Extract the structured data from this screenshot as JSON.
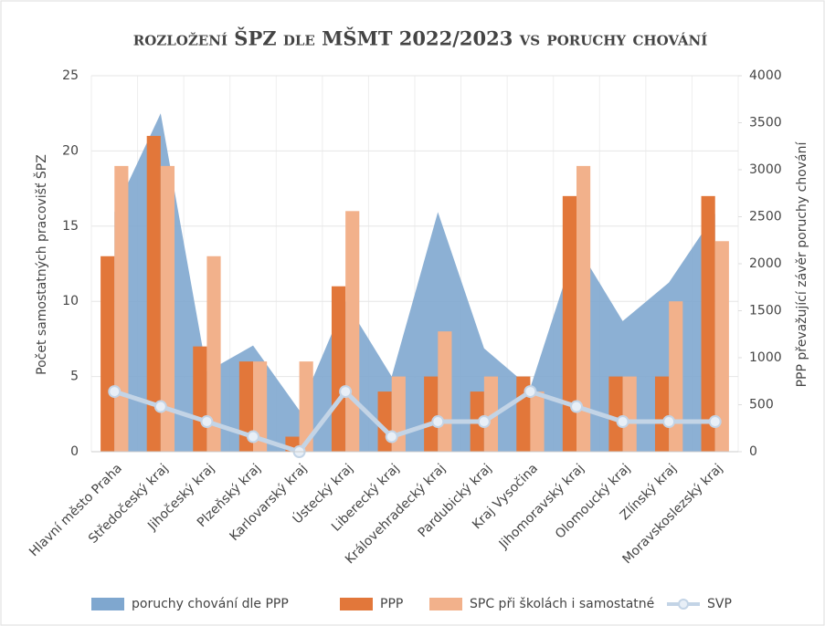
{
  "chart_data": {
    "type": "combo",
    "title": "rozložení ŠPZ dle MŠMT 2022/2023 vs poruchy chování",
    "ylabel": "Počet samostatných pracovišť ŠPZ",
    "y2label": "PPP převažující závěr poruchy chování",
    "categories": [
      "Hlavní město Praha",
      "Středočeský kraj",
      "Jihočeský kraj",
      "Plzeňský kraj",
      "Karlovarský kraj",
      "Ústecký kraj",
      "Liberecký kraj",
      "Královehradecký kraj",
      "Pardubický kraj",
      "Kraj Vysočina",
      "Jihomoravský kraj",
      "Olomoucký kraj",
      "Zlínský kraj",
      "Moravskoslezský kraj"
    ],
    "series": [
      {
        "name": "poruchy chování dle PPP",
        "type": "area",
        "axis": "y2",
        "color": "#7fa7cf",
        "values": [
          2550,
          3600,
          850,
          1130,
          440,
          1600,
          800,
          2550,
          1100,
          680,
          2200,
          1390,
          1800,
          2530
        ]
      },
      {
        "name": "PPP",
        "type": "bar",
        "color": "#e2773a",
        "values": [
          13,
          21,
          7,
          6,
          1,
          11,
          4,
          5,
          4,
          5,
          17,
          5,
          5,
          17
        ]
      },
      {
        "name": "SPC při školách i samostatné",
        "type": "bar",
        "color": "#f2b18b",
        "values": [
          19,
          19,
          13,
          6,
          6,
          16,
          5,
          8,
          5,
          4,
          19,
          5,
          10,
          14
        ]
      },
      {
        "name": "SVP",
        "type": "line",
        "axis": "y2",
        "color": "#c3d4e6",
        "values": [
          640,
          480,
          320,
          160,
          0,
          640,
          160,
          320,
          320,
          640,
          480,
          320,
          320,
          320
        ]
      }
    ],
    "ylim": [
      0,
      25
    ],
    "yticks": [
      0,
      5,
      10,
      15,
      20,
      25
    ],
    "y2lim": [
      0,
      4000
    ],
    "y2ticks": [
      0,
      500,
      1000,
      1500,
      2000,
      2500,
      3000,
      3500,
      4000
    ],
    "grid": true,
    "legend": "bottom"
  }
}
